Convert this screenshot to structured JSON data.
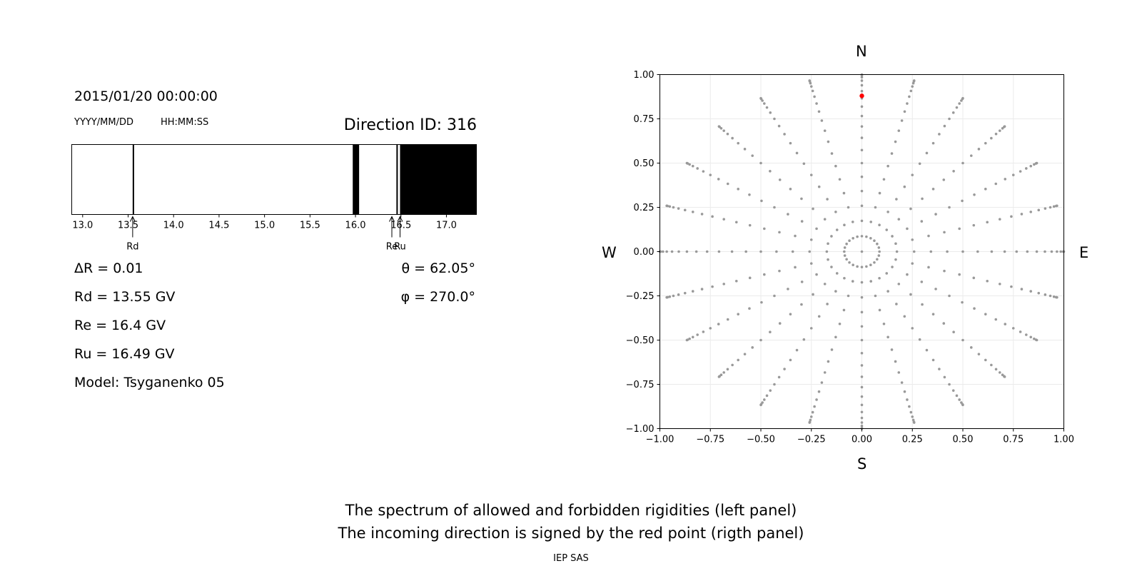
{
  "header": {
    "datetime": "2015/01/20 00:00:00",
    "date_format": "YYYY/MM/DD",
    "time_format": "HH:MM:SS",
    "direction_id": "Direction ID: 316"
  },
  "params": {
    "delta_r": "ΔR = 0.01",
    "rd": "Rd = 13.55 GV",
    "re": "Re = 16.4 GV",
    "ru": "Ru = 16.49 GV",
    "model": "Model: Tsyganenko 05",
    "theta": "θ = 62.05°",
    "phi": "φ = 270.0°"
  },
  "compass": {
    "north": "N",
    "south": "S",
    "west": "W",
    "east": "E"
  },
  "caption": {
    "line1": "The spectrum of allowed and forbidden rigidities (left panel)",
    "line2": "The incoming direction is signed by the red point (rigth panel)"
  },
  "footer": "IEP SAS",
  "colors": {
    "forbidden": "#000000",
    "allowed": "#ffffff",
    "grid_points": "#999999",
    "direction_point": "#ff0000"
  },
  "chart_data": [
    {
      "type": "bar",
      "xlim": [
        12.88,
        17.33
      ],
      "x_ticks": [
        "13.0",
        "13.5",
        "14.0",
        "14.5",
        "15.0",
        "15.5",
        "16.0",
        "16.5",
        "17.0"
      ],
      "x_tick_values": [
        13.0,
        13.5,
        14.0,
        14.5,
        15.0,
        15.5,
        16.0,
        16.5,
        17.0
      ],
      "forbidden_bands": [
        [
          13.55,
          13.56
        ],
        [
          15.97,
          16.04
        ],
        [
          16.45,
          16.46
        ],
        [
          16.49,
          17.33
        ]
      ],
      "markers": [
        {
          "label": "Rd",
          "value": 13.55
        },
        {
          "label": "Re",
          "value": 16.4
        },
        {
          "label": "Ru",
          "value": 16.49
        }
      ]
    },
    {
      "type": "scatter",
      "xlim": [
        -1.0,
        1.0
      ],
      "ylim": [
        -1.0,
        1.0
      ],
      "grid": true,
      "x_ticks": [
        "−1.00",
        "−0.75",
        "−0.50",
        "−0.25",
        "0.00",
        "0.25",
        "0.50",
        "0.75",
        "1.00"
      ],
      "y_ticks": [
        "1.00",
        "0.75",
        "0.50",
        "0.25",
        "0.00",
        "−0.25",
        "−0.50",
        "−0.75",
        "−1.00"
      ],
      "tick_values": [
        -1.0,
        -0.75,
        -0.5,
        -0.25,
        0.0,
        0.25,
        0.5,
        0.75,
        1.0
      ],
      "direction_grid": {
        "azimuth_step_deg": 15,
        "zenith_step_deg": 5,
        "zenith_max_deg": 90
      },
      "direction_point": {
        "x": 0.0,
        "y": 0.88
      }
    }
  ]
}
